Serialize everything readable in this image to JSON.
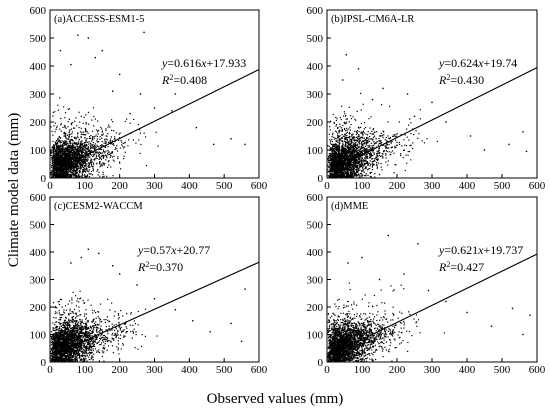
{
  "figure": {
    "ylabel": "Climate model data (mm)",
    "xlabel": "Observed values (mm)"
  },
  "chart_data": [
    {
      "type": "scatter",
      "panel_label": "(a)ACCESS-ESM1-5",
      "equation": {
        "y": "y",
        "rest": "=0.616x+17.933"
      },
      "r2": {
        "r": "R",
        "sup": "2",
        "rest": "=0.408"
      },
      "slope": 0.616,
      "intercept": 17.933,
      "xlim": [
        0,
        600
      ],
      "ylim": [
        0,
        600
      ],
      "xticks": [
        0,
        100,
        200,
        300,
        400,
        500,
        600
      ],
      "yticks": [
        0,
        100,
        200,
        300,
        400,
        500,
        600
      ],
      "series_color": "#000000",
      "outliers": [
        [
          80,
          510
        ],
        [
          110,
          500
        ],
        [
          150,
          455
        ],
        [
          30,
          455
        ],
        [
          60,
          405
        ],
        [
          130,
          430
        ],
        [
          200,
          370
        ],
        [
          260,
          300
        ],
        [
          300,
          250
        ],
        [
          350,
          240
        ],
        [
          420,
          180
        ],
        [
          470,
          120
        ],
        [
          520,
          140
        ],
        [
          560,
          120
        ],
        [
          270,
          520
        ],
        [
          360,
          300
        ],
        [
          230,
          230
        ],
        [
          180,
          310
        ]
      ]
    },
    {
      "type": "scatter",
      "panel_label": "(b)IPSL-CM6A-LR",
      "equation": {
        "y": "y",
        "rest": "=0.624x+19.74"
      },
      "r2": {
        "r": "R",
        "sup": "2",
        "rest": "=0.430"
      },
      "slope": 0.624,
      "intercept": 19.74,
      "xlim": [
        0,
        600
      ],
      "ylim": [
        0,
        600
      ],
      "xticks": [
        0,
        100,
        200,
        300,
        400,
        500,
        600
      ],
      "yticks": [
        0,
        100,
        200,
        300,
        400,
        500,
        600
      ],
      "series_color": "#000000",
      "outliers": [
        [
          55,
          440
        ],
        [
          90,
          390
        ],
        [
          45,
          350
        ],
        [
          160,
          320
        ],
        [
          230,
          300
        ],
        [
          300,
          270
        ],
        [
          340,
          200
        ],
        [
          410,
          150
        ],
        [
          450,
          100
        ],
        [
          560,
          165
        ],
        [
          570,
          95
        ],
        [
          520,
          120
        ],
        [
          130,
          280
        ],
        [
          250,
          220
        ]
      ]
    },
    {
      "type": "scatter",
      "panel_label": "(c)CESM2-WACCM",
      "equation": {
        "y": "y",
        "rest": "=0.57x+20.77"
      },
      "r2": {
        "r": "R",
        "sup": "2",
        "rest": "=0.370"
      },
      "slope": 0.57,
      "intercept": 20.77,
      "xlim": [
        0,
        600
      ],
      "ylim": [
        0,
        600
      ],
      "xticks": [
        0,
        100,
        200,
        300,
        400,
        500,
        600
      ],
      "yticks": [
        0,
        100,
        200,
        300,
        400,
        500,
        600
      ],
      "series_color": "#000000",
      "outliers": [
        [
          110,
          410
        ],
        [
          140,
          395
        ],
        [
          90,
          380
        ],
        [
          60,
          360
        ],
        [
          200,
          320
        ],
        [
          250,
          280
        ],
        [
          300,
          230
        ],
        [
          360,
          190
        ],
        [
          410,
          150
        ],
        [
          460,
          110
        ],
        [
          550,
          75
        ],
        [
          560,
          265
        ],
        [
          520,
          140
        ],
        [
          180,
          350
        ]
      ]
    },
    {
      "type": "scatter",
      "panel_label": "(d)MME",
      "equation": {
        "y": "y",
        "rest": "=0.621x+19.737"
      },
      "r2": {
        "r": "R",
        "sup": "2",
        "rest": "=0.427"
      },
      "slope": 0.621,
      "intercept": 19.737,
      "xlim": [
        0,
        600
      ],
      "ylim": [
        0,
        600
      ],
      "xticks": [
        0,
        100,
        200,
        300,
        400,
        500,
        600
      ],
      "yticks": [
        0,
        100,
        200,
        300,
        400,
        500,
        600
      ],
      "series_color": "#000000",
      "outliers": [
        [
          175,
          460
        ],
        [
          260,
          430
        ],
        [
          100,
          380
        ],
        [
          60,
          360
        ],
        [
          220,
          320
        ],
        [
          290,
          260
        ],
        [
          340,
          220
        ],
        [
          400,
          180
        ],
        [
          470,
          130
        ],
        [
          560,
          100
        ],
        [
          530,
          195
        ],
        [
          580,
          170
        ],
        [
          150,
          300
        ]
      ]
    }
  ]
}
